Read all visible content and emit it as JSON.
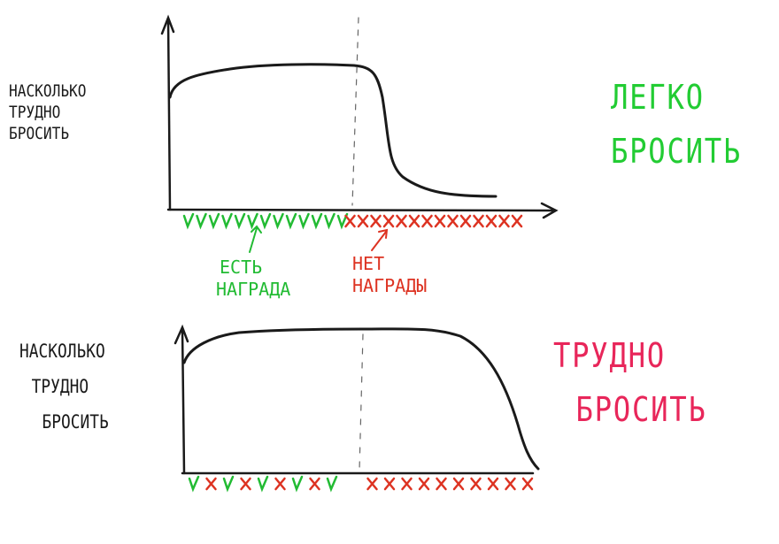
{
  "top": {
    "ylabel": [
      "НАСКОЛЬКО",
      "ТРУДНО",
      "БРОСИТЬ"
    ],
    "verdict": [
      "ЛЕГКО",
      "БРОСИТЬ"
    ],
    "verdict_color": "#22cc33",
    "marks": "VVVVVVVVVVVVVXXXXXXXXXXXXXX",
    "curve": "plateau then sharp drop after reward stops"
  },
  "annotations": {
    "reward": [
      "ЕСТЬ",
      "НАГРАДА"
    ],
    "reward_color": "#22bb33",
    "no_reward": [
      "НЕТ",
      "НАГРАДЫ"
    ],
    "no_reward_color": "#dd3322"
  },
  "bottom": {
    "ylabel": [
      "НАСКОЛЬКО",
      "ТРУДНО",
      "БРОСИТЬ"
    ],
    "verdict": [
      "ТРУДНО",
      "БРОСИТЬ"
    ],
    "verdict_color": "#e8265a",
    "marks": "VXVXVXVXVXXXXXXXXXX",
    "curve": "plateau continues long after reward stops, then drops"
  },
  "colors": {
    "ink": "#1a1a1a",
    "check": "#22bb33",
    "cross": "#dd3322"
  }
}
